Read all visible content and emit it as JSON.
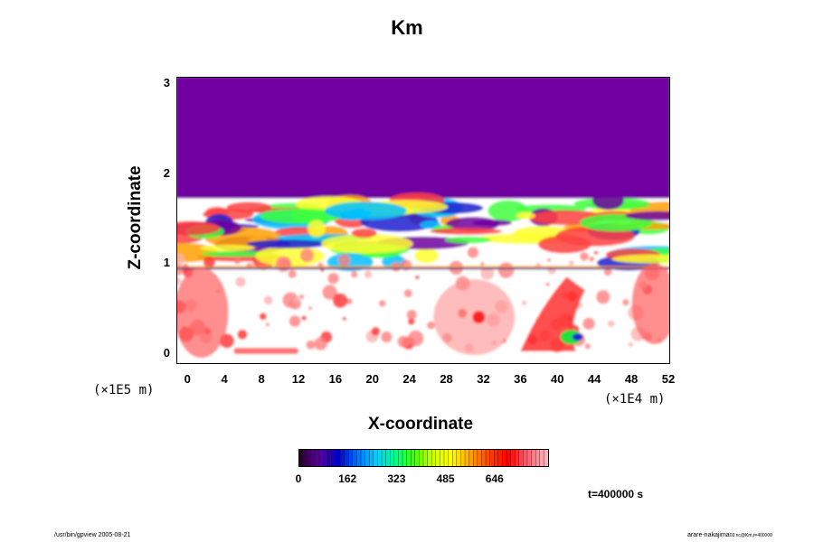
{
  "chart_data": {
    "type": "heatmap",
    "title": "Km",
    "xlabel": "X-coordinate",
    "ylabel": "Z-coordinate",
    "x_ticks": [
      0,
      4,
      8,
      12,
      16,
      20,
      24,
      28,
      32,
      36,
      40,
      44,
      48,
      52
    ],
    "y_ticks": [
      0,
      1,
      2,
      3
    ],
    "x_scale_label": "(×1E4 m)",
    "y_scale_label": "(×1E5 m)",
    "xlim": [
      -1.2,
      52.2
    ],
    "ylim": [
      -0.12,
      3.07
    ],
    "colorbar": {
      "ticks": [
        "0",
        "162",
        "323",
        "485",
        "646"
      ],
      "colors": [
        "#2a0030",
        "#5a00a0",
        "#0000c8",
        "#0070ff",
        "#00d0ff",
        "#00ff90",
        "#40ff00",
        "#d0ff00",
        "#ffff00",
        "#ffa000",
        "#ff4000",
        "#ff0000",
        "#ff6070",
        "#ffb0b8"
      ]
    },
    "background_value_color": "#7000a0",
    "regions_description_bands": [
      {
        "z_from": 1.72,
        "z_to": 3.07,
        "level": "low"
      },
      {
        "z_from": -0.12,
        "z_to": 1.72,
        "level": "mixed"
      }
    ]
  },
  "time_label": "t=400000 s",
  "footer": {
    "left": "/usr/bin/gpview 2005-08-21",
    "right": "arare-nakajima",
    "right_small": "03.nc@Km,t=400000"
  }
}
